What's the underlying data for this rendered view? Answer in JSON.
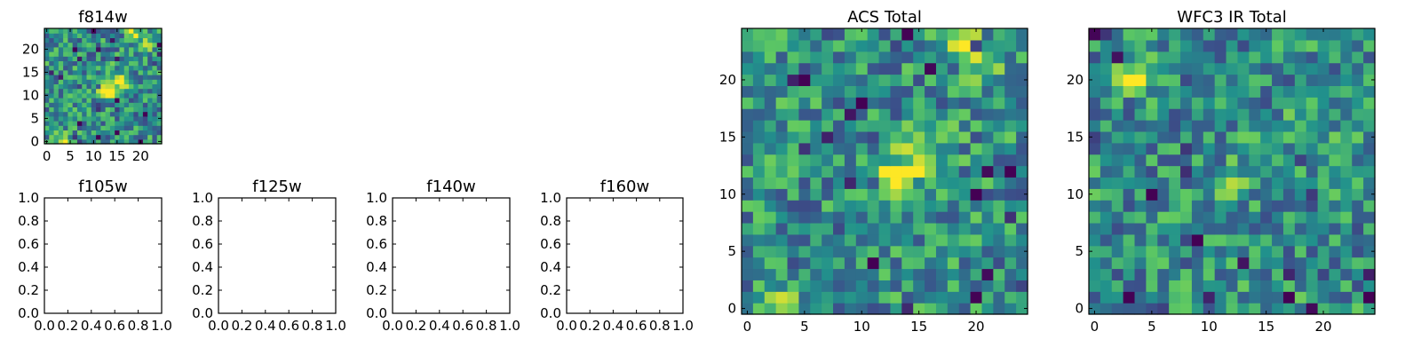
{
  "chart_data": [
    {
      "type": "heatmap",
      "title": "f814w",
      "grid": false,
      "xlim": [
        -0.5,
        24.5
      ],
      "ylim": [
        -0.5,
        24.5
      ],
      "xticks": [
        0,
        5,
        10,
        15,
        20
      ],
      "yticks": [
        0,
        5,
        10,
        15,
        20
      ],
      "colormap": "viridis",
      "image": "noise cutout, 25x25 pixels, bright diagonal feature near (13,11) rising to upper-right, bright blob at bottom-left"
    },
    {
      "type": "scatter",
      "title": "f105w",
      "grid": false,
      "xlim": [
        0,
        1
      ],
      "ylim": [
        0,
        1
      ],
      "xticks": [
        "0.0",
        "0.2",
        "0.4",
        "0.6",
        "0.8",
        "1.0"
      ],
      "yticks": [
        "0.0",
        "0.2",
        "0.4",
        "0.6",
        "0.8",
        "1.0"
      ],
      "series": []
    },
    {
      "type": "scatter",
      "title": "f125w",
      "grid": false,
      "xlim": [
        0,
        1
      ],
      "ylim": [
        0,
        1
      ],
      "xticks": [
        "0.0",
        "0.2",
        "0.4",
        "0.6",
        "0.8",
        "1.0"
      ],
      "yticks": [
        "0.0",
        "0.2",
        "0.4",
        "0.6",
        "0.8",
        "1.0"
      ],
      "series": []
    },
    {
      "type": "scatter",
      "title": "f140w",
      "grid": false,
      "xlim": [
        0,
        1
      ],
      "ylim": [
        0,
        1
      ],
      "xticks": [
        "0.0",
        "0.2",
        "0.4",
        "0.6",
        "0.8",
        "1.0"
      ],
      "yticks": [
        "0.0",
        "0.2",
        "0.4",
        "0.6",
        "0.8",
        "1.0"
      ],
      "series": []
    },
    {
      "type": "scatter",
      "title": "f160w",
      "grid": false,
      "xlim": [
        0,
        1
      ],
      "ylim": [
        0,
        1
      ],
      "xticks": [
        "0.0",
        "0.2",
        "0.4",
        "0.6",
        "0.8",
        "1.0"
      ],
      "yticks": [
        "0.0",
        "0.2",
        "0.4",
        "0.6",
        "0.8",
        "1.0"
      ],
      "series": []
    },
    {
      "type": "heatmap",
      "title": "ACS Total",
      "grid": false,
      "xlim": [
        -0.5,
        24.5
      ],
      "ylim": [
        -0.5,
        24.5
      ],
      "xticks": [
        0,
        5,
        10,
        15,
        20
      ],
      "yticks": [
        0,
        5,
        10,
        15,
        20
      ],
      "colormap": "viridis",
      "image": "noise cutout, 25x25 pixels, bright feature near (13,11) extending toward upper-right to (18,24), bright blob at bottom-left"
    },
    {
      "type": "heatmap",
      "title": "WFC3 IR Total",
      "grid": false,
      "xlim": [
        -0.5,
        24.5
      ],
      "ylim": [
        -0.5,
        24.5
      ],
      "xticks": [
        0,
        5,
        10,
        15,
        20
      ],
      "yticks": [
        0,
        5,
        10,
        15,
        20
      ],
      "colormap": "viridis",
      "image": "noise cutout, 25x25 pixels, scattered bright pixels, brighter around (3,20) and (12,11)"
    }
  ]
}
